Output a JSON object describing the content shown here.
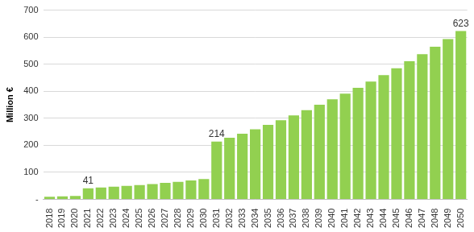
{
  "chart_data": {
    "type": "bar",
    "y_label": "Million €",
    "categories": [
      "2018",
      "2019",
      "2020",
      "2021",
      "2022",
      "2023",
      "2024",
      "2025",
      "2026",
      "2027",
      "2028",
      "2029",
      "2030",
      "2031",
      "2032",
      "2033",
      "2034",
      "2035",
      "2036",
      "2037",
      "2038",
      "2039",
      "2040",
      "2041",
      "2042",
      "2043",
      "2044",
      "2045",
      "2046",
      "2047",
      "2048",
      "2049",
      "2050"
    ],
    "values": [
      10,
      11,
      13,
      41,
      44,
      47,
      50,
      53,
      57,
      61,
      65,
      70,
      75,
      214,
      228,
      243,
      259,
      276,
      293,
      311,
      330,
      350,
      370,
      391,
      413,
      436,
      460,
      485,
      511,
      537,
      565,
      593,
      623
    ],
    "value_labels": [
      null,
      null,
      null,
      "41",
      null,
      null,
      null,
      null,
      null,
      null,
      null,
      null,
      null,
      "214",
      null,
      null,
      null,
      null,
      null,
      null,
      null,
      null,
      null,
      null,
      null,
      null,
      null,
      null,
      null,
      null,
      null,
      null,
      "623"
    ],
    "data_labels": true,
    "color": "#92d050",
    "ylim": [
      0,
      700
    ],
    "yticks": [
      {
        "value": 0,
        "label": "-"
      },
      100,
      200,
      300,
      400,
      500,
      600,
      700
    ],
    "grid": true
  }
}
